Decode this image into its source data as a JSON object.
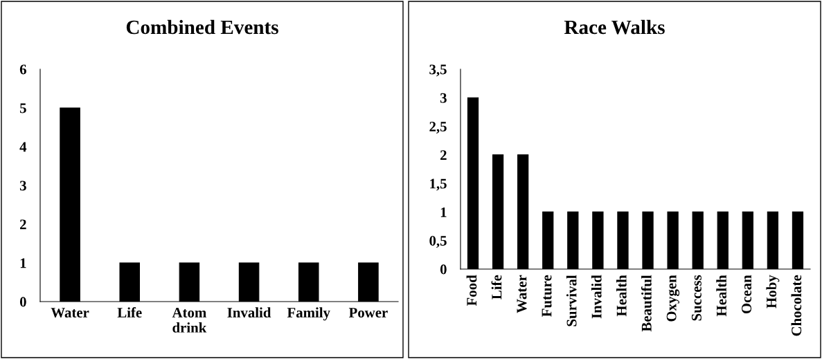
{
  "chart_data": [
    {
      "type": "bar",
      "title": "Combined Events",
      "categories": [
        "Water",
        "Life",
        "Atom\ndrink",
        "Invalid",
        "Family",
        "Power"
      ],
      "values": [
        5,
        1,
        1,
        1,
        1,
        1
      ],
      "color": "#000000",
      "ylim": [
        0,
        6
      ],
      "yticks": [
        0,
        1,
        2,
        3,
        4,
        5,
        6
      ],
      "grid": false,
      "legend": false
    },
    {
      "type": "bar",
      "title": "Race Walks",
      "categories": [
        "Food",
        "Life",
        "Water",
        "Future",
        "Survival",
        "Invalid",
        "Health",
        "Beautiful",
        "Oxygen",
        "Success",
        "Health",
        "Ocean",
        "Hoby",
        "Chocolate"
      ],
      "values": [
        3,
        2,
        2,
        1,
        1,
        1,
        1,
        1,
        1,
        1,
        1,
        1,
        1,
        1
      ],
      "color": "#000000",
      "ylim": [
        0,
        3.5
      ],
      "yticks": [
        0,
        {
          "value": 0.5,
          "label": "0,5"
        },
        1,
        {
          "value": 1.5,
          "label": "1,5"
        },
        2,
        {
          "value": 2.5,
          "label": "2,5"
        },
        3,
        {
          "value": 3.5,
          "label": "3,5"
        }
      ],
      "grid": false,
      "legend": false
    }
  ]
}
